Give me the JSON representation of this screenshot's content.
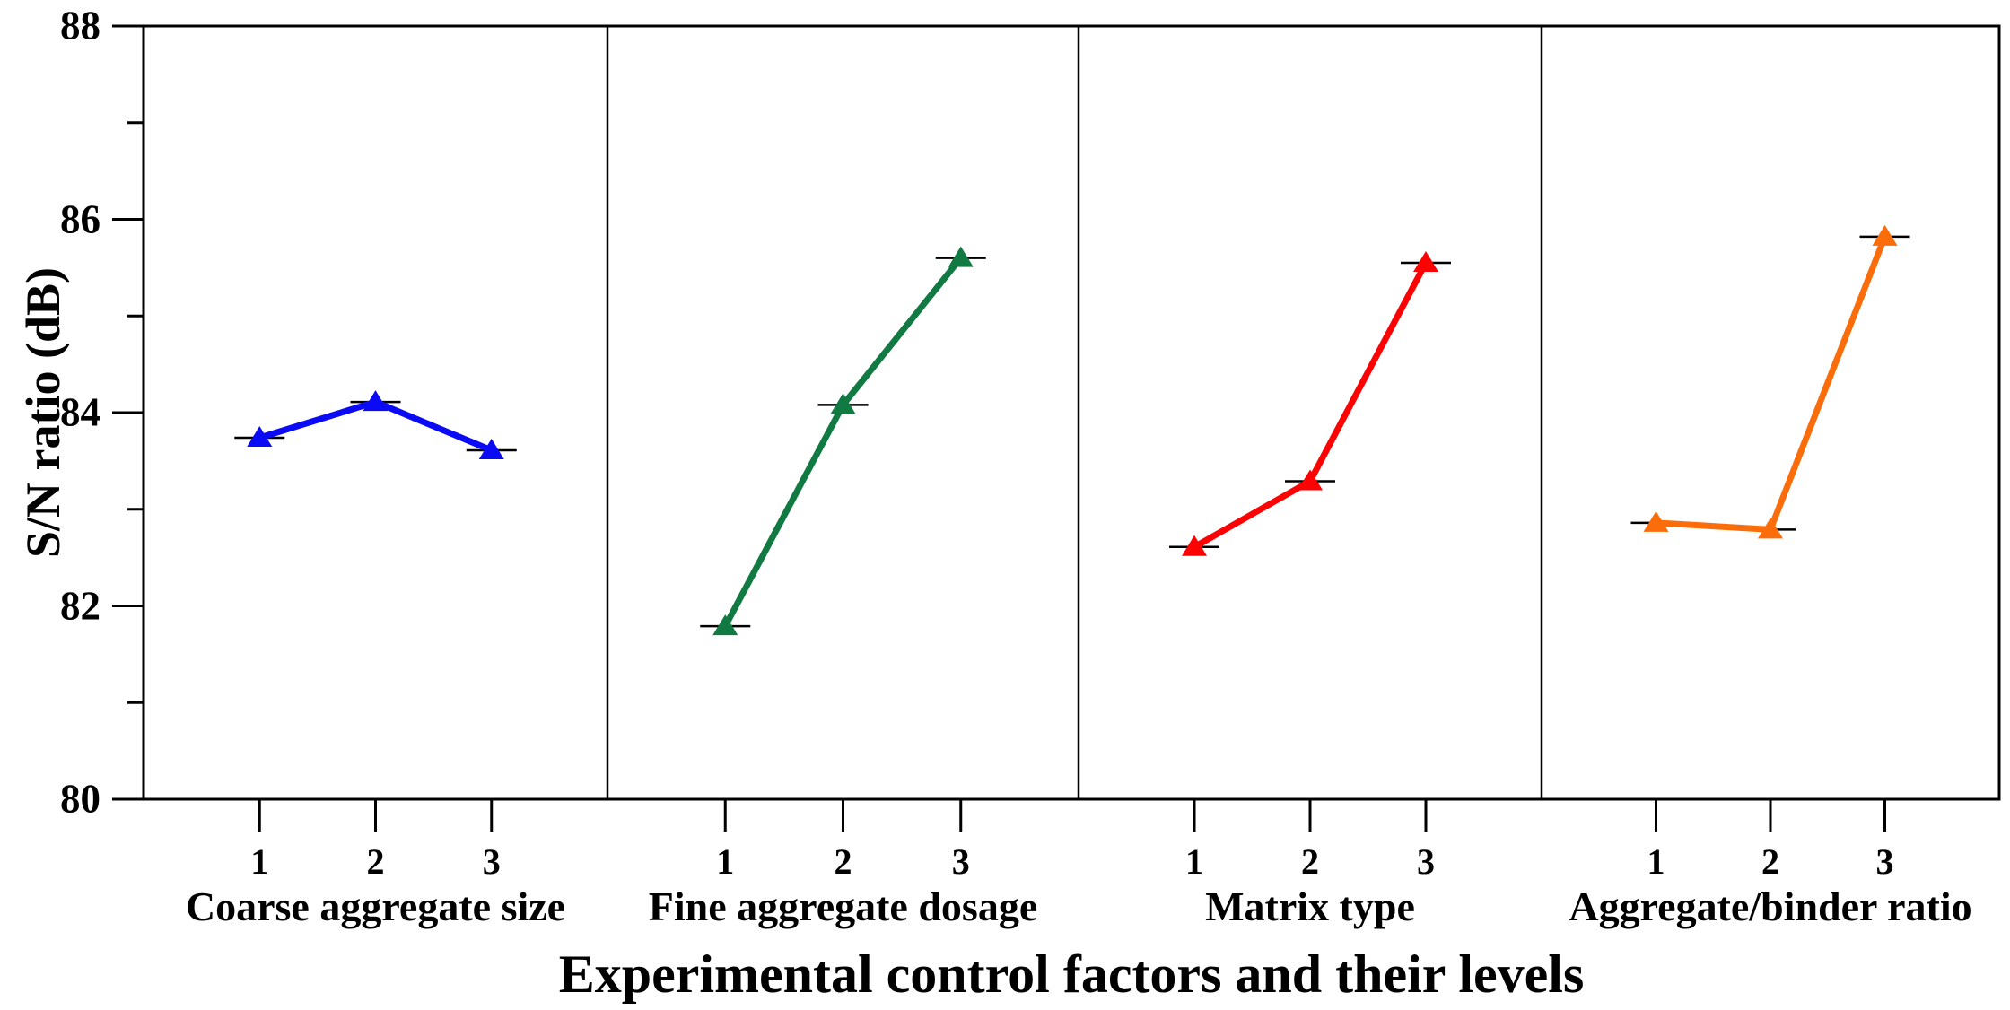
{
  "chart_data": {
    "type": "line",
    "title": "Experimental control factors and their levels",
    "ylabel": "S/N ratio (dB)",
    "ylim": [
      80,
      88
    ],
    "y_major_ticks": [
      "88",
      "86",
      "84",
      "82",
      "80"
    ],
    "y_major_tick_values": [
      88,
      86,
      84,
      82,
      80
    ],
    "y_minor_tick_values": [
      87,
      85,
      83,
      81
    ],
    "levels": [
      "1",
      "2",
      "3"
    ],
    "grid": false,
    "legend_position": "none",
    "marker": "triangle-up",
    "error_caps": true,
    "axis_color": "#000000",
    "series": [
      {
        "name": "Coarse aggregate size",
        "color": "#0A0AF5",
        "values": [
          83.74,
          84.11,
          83.61
        ]
      },
      {
        "name": "Fine aggregate dosage",
        "color": "#107A42",
        "values": [
          81.79,
          84.08,
          85.6
        ]
      },
      {
        "name": "Matrix type",
        "color": "#FC0202",
        "values": [
          82.61,
          83.29,
          85.55
        ]
      },
      {
        "name": "Aggregate/binder ratio",
        "color": "#FB6C0A",
        "values": [
          82.86,
          82.79,
          85.82
        ]
      }
    ]
  }
}
